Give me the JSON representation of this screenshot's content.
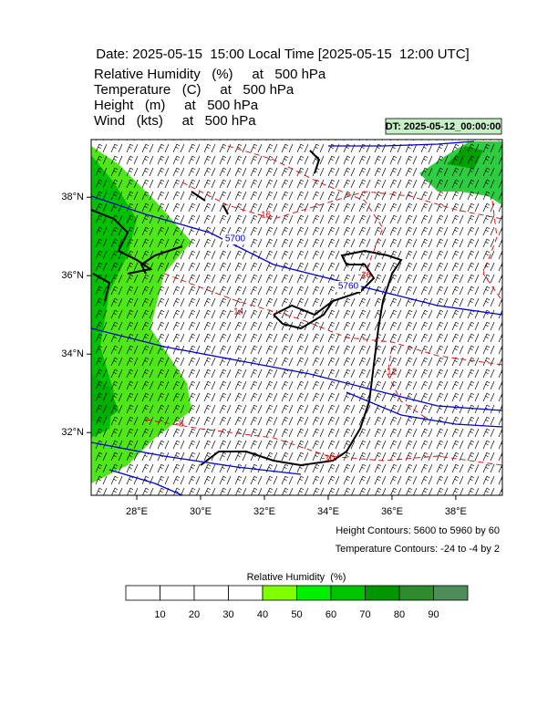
{
  "title": "Date: 2025-05-15  15:00 Local Time [2025-05-15  12:00 UTC]",
  "fields": [
    "Relative Humidity   (%)     at   500 hPa",
    "Temperature   (C)     at   500 hPa",
    "Height   (m)     at   500 hPa",
    "Wind   (kts)     at   500 hPa"
  ],
  "dt_label": "DT: 2025-05-12_00:00:00",
  "map": {
    "xlim": [
      26.57,
      39.46
    ],
    "ylim": [
      30.4,
      39.47
    ],
    "xticks": [
      {
        "value": 28,
        "label": "28°E"
      },
      {
        "value": 30,
        "label": "30°E"
      },
      {
        "value": 32,
        "label": "32°E"
      },
      {
        "value": 34,
        "label": "34°E"
      },
      {
        "value": 36,
        "label": "36°E"
      },
      {
        "value": 38,
        "label": "38°E"
      }
    ],
    "yticks": [
      {
        "value": 32,
        "label": "32°N"
      },
      {
        "value": 34,
        "label": "34°N"
      },
      {
        "value": 36,
        "label": "36°N"
      },
      {
        "value": 38,
        "label": "38°N"
      }
    ],
    "height_contour_labels": [
      5700,
      5760
    ],
    "height_color": "#0000cc",
    "temperature_contour_labels": [
      -16,
      -16,
      -14,
      -12,
      -8,
      -10
    ],
    "temperature_color": "#e00000"
  },
  "height_legend": "Height Contours: 5600 to 5960 by 60",
  "temperature_legend": "Temperature Contours: -24 to -4 by 2",
  "colorbar": {
    "title": "Relative Humidity  (%)",
    "levels": [
      10,
      20,
      30,
      40,
      50,
      60,
      70,
      80,
      90
    ],
    "colors": [
      "#ffffff",
      "#ffffff",
      "#ffffff",
      "#ffffff",
      "#80ff00",
      "#00f000",
      "#00c400",
      "#009600",
      "#2e8b2e",
      "#4e8c5a"
    ]
  }
}
